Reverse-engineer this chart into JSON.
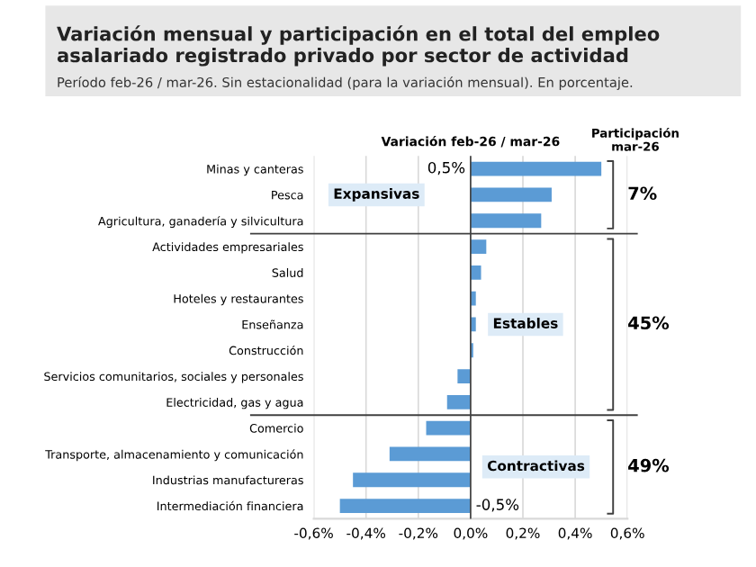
{
  "chart_data": {
    "type": "bar",
    "orientation": "horizontal",
    "title": "Variación mensual y participación en el total del empleo asalariado registrado privado por sector de actividad",
    "subtitle": "Período feb-26 / mar-26. Sin estacionalidad (para la variación mensual). En porcentaje.",
    "xlabel": "Variación feb-26 / mar-26",
    "categories": [
      "Minas y canteras",
      "Pesca",
      "Agricultura, ganadería y silvicultura",
      "Actividades empresariales",
      "Salud",
      "Hoteles y restaurantes",
      "Enseñanza",
      "Construcción",
      "Servicios comunitarios, sociales y personales",
      "Electricidad, gas y agua",
      "Comercio",
      "Transporte, almacenamiento y comunicación",
      "Industrias manufactureras",
      "Intermediación financiera"
    ],
    "values": [
      0.5,
      0.31,
      0.27,
      0.06,
      0.04,
      0.02,
      0.02,
      0.01,
      -0.05,
      -0.09,
      -0.17,
      -0.31,
      -0.45,
      -0.5
    ],
    "color": "#5b9bd5",
    "value_labels": [
      "0,5%",
      null,
      null,
      null,
      null,
      null,
      null,
      null,
      null,
      null,
      null,
      null,
      null,
      "-0,5%"
    ],
    "xlim": [
      -0.6,
      0.6
    ],
    "xticks": [
      {
        "value": -0.6,
        "label": "-0,6%"
      },
      {
        "value": -0.4,
        "label": "-0,4%"
      },
      {
        "value": -0.2,
        "label": "-0,2%"
      },
      {
        "value": 0.0,
        "label": "0,0%"
      },
      {
        "value": 0.2,
        "label": "0,2%"
      },
      {
        "value": 0.4,
        "label": "0,4%"
      },
      {
        "value": 0.6,
        "label": "0,6%"
      }
    ],
    "grid": "x",
    "annotations": [
      "Expansivas",
      "Estables",
      "Contractivas",
      "Participación\nmar-26",
      "7%",
      "45%",
      "49%"
    ]
  }
}
